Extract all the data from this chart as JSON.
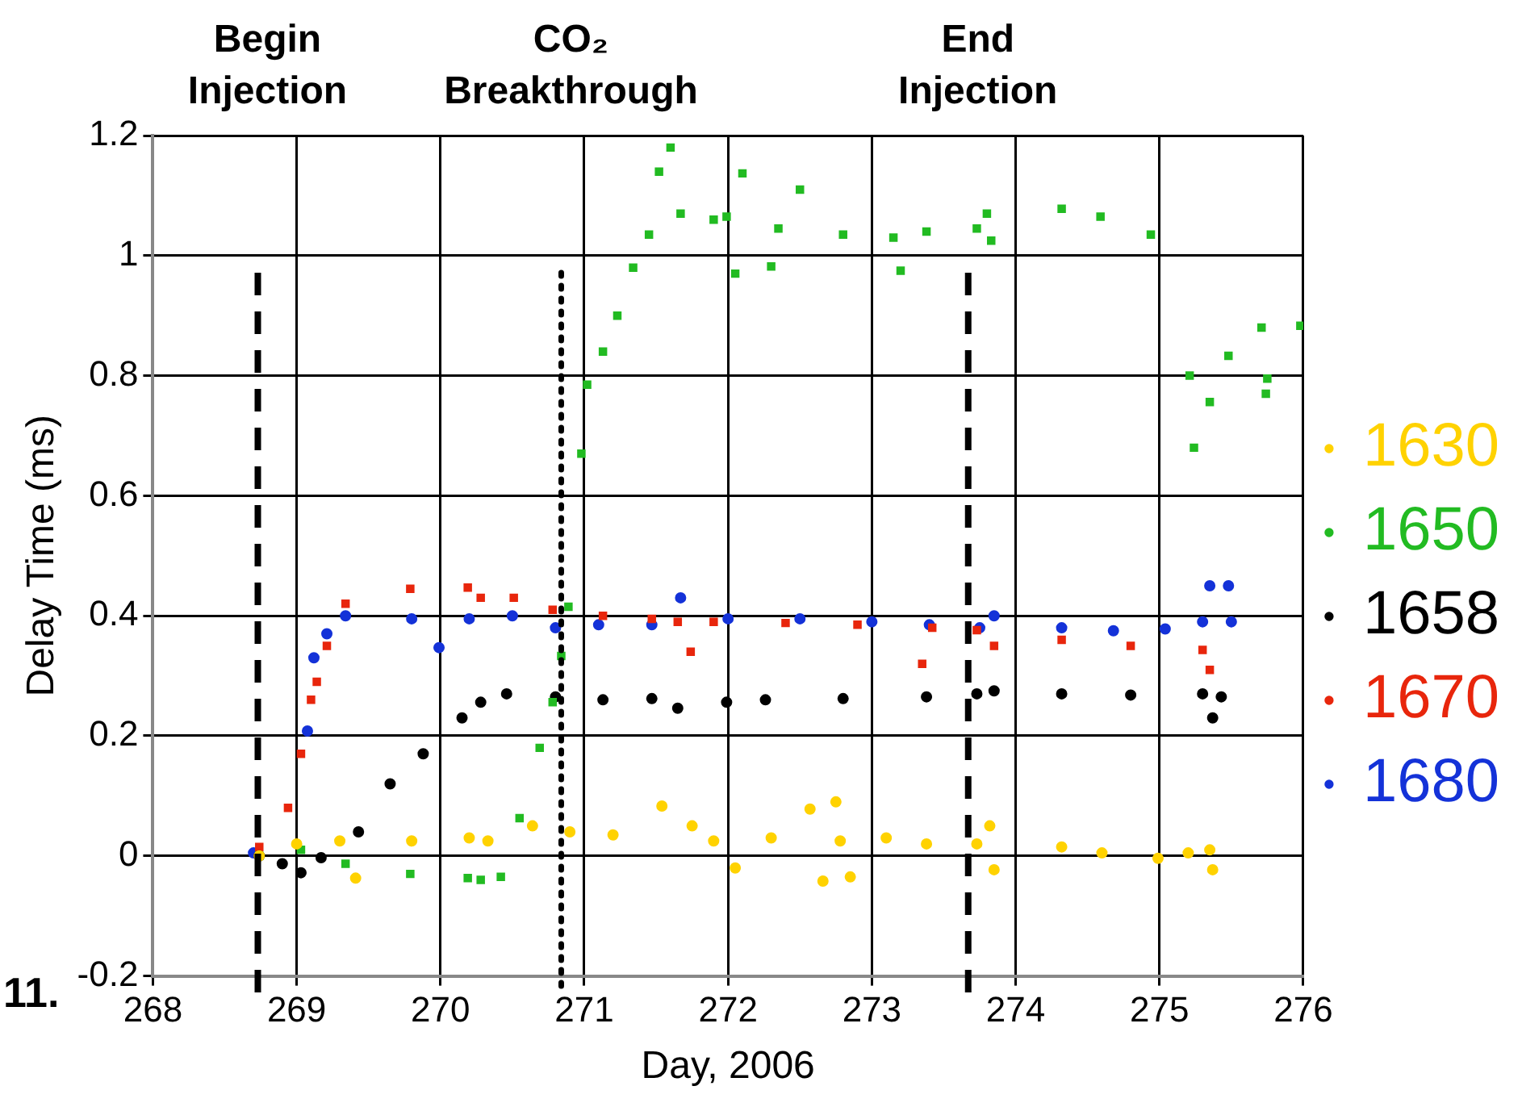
{
  "chart_data": {
    "type": "scatter",
    "xlabel": "Day, 2006",
    "ylabel": "Delay Time (ms)",
    "xlim": [
      268,
      276
    ],
    "xticks": [
      268,
      269,
      270,
      271,
      272,
      273,
      274,
      275,
      276
    ],
    "ylim": [
      -0.2,
      1.2
    ],
    "yticks": [
      -0.2,
      0,
      0.2,
      0.4,
      0.6,
      0.8,
      1,
      1.2
    ],
    "grid": true,
    "legend": "right",
    "series": [
      {
        "name": "1630",
        "color": "#ffd200",
        "marker": "circle",
        "x": [
          268.74,
          269.0,
          269.3,
          269.41,
          269.8,
          270.2,
          270.33,
          270.64,
          270.9,
          271.2,
          271.54,
          271.75,
          271.9,
          272.05,
          272.3,
          272.57,
          272.66,
          272.75,
          272.78,
          272.85,
          273.1,
          273.38,
          273.73,
          273.82,
          273.85,
          274.32,
          274.6,
          274.99,
          275.2,
          275.35,
          275.37
        ],
        "values": [
          0,
          0.02,
          0.025,
          -0.037,
          0.025,
          0.03,
          0.025,
          0.05,
          0.04,
          0.035,
          0.083,
          0.05,
          0.025,
          -0.02,
          0.03,
          0.078,
          -0.042,
          0.09,
          0.025,
          -0.035,
          0.03,
          0.02,
          0.02,
          0.05,
          -0.023,
          0.015,
          0.005,
          -0.004,
          0.005,
          0.01,
          -0.023
        ]
      },
      {
        "name": "1650",
        "color": "#22bb22",
        "marker": "square",
        "x": [
          268.74,
          269.03,
          269.34,
          269.79,
          270.19,
          270.28,
          270.42,
          270.55,
          270.69,
          270.78,
          270.84,
          270.89,
          270.98,
          271.02,
          271.13,
          271.23,
          271.34,
          271.45,
          271.52,
          271.6,
          271.67,
          271.9,
          271.99,
          272.05,
          272.1,
          272.3,
          272.35,
          272.5,
          272.8,
          273.15,
          273.2,
          273.38,
          273.73,
          273.8,
          273.83,
          274.32,
          274.59,
          274.94,
          275.21,
          275.24,
          275.35,
          275.48,
          275.71,
          275.74,
          275.75,
          275.98
        ],
        "values": [
          0,
          0.01,
          -0.013,
          -0.03,
          -0.037,
          -0.04,
          -0.035,
          0.063,
          0.18,
          0.256,
          0.333,
          0.415,
          0.67,
          0.785,
          0.84,
          0.9,
          0.98,
          1.035,
          1.14,
          1.18,
          1.07,
          1.06,
          1.065,
          0.97,
          1.137,
          0.982,
          1.045,
          1.11,
          1.035,
          1.03,
          0.975,
          1.04,
          1.045,
          1.07,
          1.025,
          1.078,
          1.065,
          1.035,
          0.8,
          0.68,
          0.756,
          0.833,
          0.88,
          0.77,
          0.795,
          0.883
        ]
      },
      {
        "name": "1658",
        "color": "#000000",
        "marker": "circle",
        "x": [
          268.74,
          268.9,
          269.03,
          269.17,
          269.43,
          269.65,
          269.88,
          270.15,
          270.28,
          270.46,
          270.8,
          271.13,
          271.47,
          271.65,
          271.99,
          272.26,
          272.8,
          273.38,
          273.73,
          273.85,
          274.32,
          274.8,
          275.3,
          275.37,
          275.43
        ],
        "values": [
          0,
          -0.013,
          -0.028,
          -0.003,
          0.04,
          0.12,
          0.17,
          0.23,
          0.256,
          0.27,
          0.265,
          0.26,
          0.262,
          0.246,
          0.256,
          0.26,
          0.262,
          0.265,
          0.27,
          0.275,
          0.27,
          0.268,
          0.27,
          0.23,
          0.265
        ]
      },
      {
        "name": "1670",
        "color": "#e8260c",
        "marker": "square",
        "x": [
          268.74,
          268.94,
          269.03,
          269.1,
          269.14,
          269.21,
          269.34,
          269.79,
          270.19,
          270.28,
          270.51,
          270.78,
          271.13,
          271.47,
          271.65,
          271.74,
          271.9,
          272.4,
          272.9,
          273.35,
          273.42,
          273.73,
          273.85,
          274.32,
          274.8,
          275.3,
          275.35
        ],
        "values": [
          0.015,
          0.08,
          0.17,
          0.26,
          0.29,
          0.35,
          0.42,
          0.445,
          0.447,
          0.43,
          0.43,
          0.41,
          0.4,
          0.395,
          0.39,
          0.34,
          0.39,
          0.388,
          0.385,
          0.32,
          0.38,
          0.376,
          0.35,
          0.36,
          0.35,
          0.343,
          0.31
        ]
      },
      {
        "name": "1680",
        "color": "#1432d8",
        "marker": "circle",
        "x": [
          268.7,
          269.075,
          269.12,
          269.21,
          269.34,
          269.8,
          269.99,
          270.2,
          270.5,
          270.8,
          271.1,
          271.47,
          271.67,
          272.0,
          272.5,
          273.0,
          273.4,
          273.75,
          273.85,
          274.32,
          274.68,
          275.04,
          275.3,
          275.35,
          275.48,
          275.5
        ],
        "values": [
          0.005,
          0.208,
          0.33,
          0.37,
          0.4,
          0.395,
          0.347,
          0.395,
          0.4,
          0.38,
          0.385,
          0.385,
          0.43,
          0.395,
          0.395,
          0.39,
          0.385,
          0.38,
          0.4,
          0.38,
          0.375,
          0.378,
          0.39,
          0.45,
          0.45,
          0.39
        ]
      }
    ],
    "ref_lines": [
      {
        "axis": "x",
        "value": 268.73,
        "label": "Begin Injection",
        "color": "#000000",
        "line_style": "dashed"
      },
      {
        "axis": "x",
        "value": 270.84,
        "label": "CO₂ Breakthrough",
        "color": "#000000",
        "line_style": "dotted"
      },
      {
        "axis": "x",
        "value": 273.67,
        "label": "End Injection",
        "color": "#000000",
        "line_style": "dashed"
      }
    ],
    "annotations": [
      "11."
    ]
  }
}
